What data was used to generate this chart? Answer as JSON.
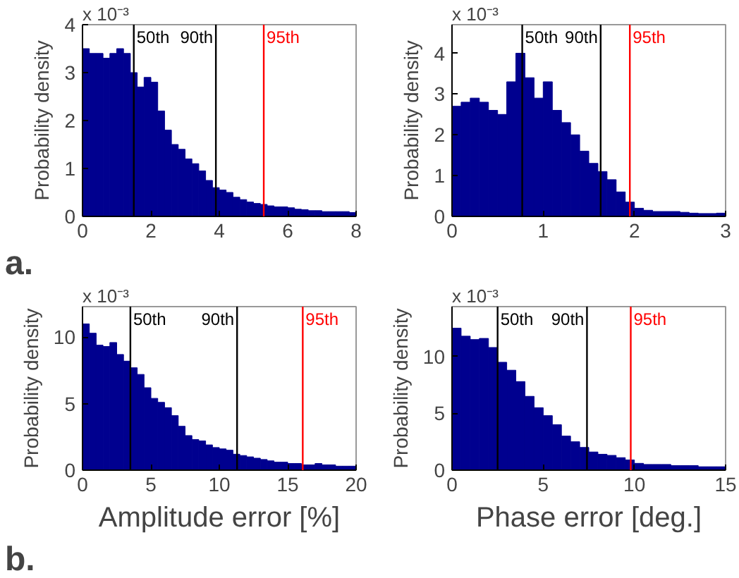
{
  "chart_data": [
    {
      "type": "histogram",
      "ylabel": "Probability density",
      "annotations": [
        "x 10⁻³",
        "a."
      ],
      "color": "#00008f",
      "bins": [
        0,
        0.2,
        0.4,
        0.6,
        0.8,
        1.0,
        1.2,
        1.4,
        1.6,
        1.8,
        2.0,
        2.2,
        2.4,
        2.6,
        2.8,
        3.0,
        3.2,
        3.4,
        3.6,
        3.8,
        4.0,
        4.2,
        4.4,
        4.6,
        4.8,
        5.0,
        5.2,
        5.4,
        5.6,
        5.8,
        6.0,
        6.2,
        6.4,
        6.6,
        6.8,
        7.0,
        7.2,
        7.4,
        7.6,
        7.8,
        8.0
      ],
      "values": [
        3.5,
        3.4,
        3.4,
        3.3,
        3.4,
        3.5,
        3.4,
        3.0,
        2.7,
        2.9,
        2.8,
        2.2,
        1.8,
        1.5,
        1.4,
        1.2,
        1.1,
        0.95,
        0.75,
        0.6,
        0.55,
        0.5,
        0.4,
        0.35,
        0.3,
        0.27,
        0.25,
        0.22,
        0.2,
        0.2,
        0.18,
        0.15,
        0.14,
        0.12,
        0.12,
        0.1,
        0.1,
        0.1,
        0.1,
        0.08
      ],
      "xlim": [
        0,
        8
      ],
      "xticks": [
        0,
        2,
        4,
        6,
        8
      ],
      "ylim": [
        0,
        4
      ],
      "yticks": [
        0,
        1,
        2,
        3,
        4
      ],
      "grid": false,
      "ref_lines": [
        {
          "axis": "x",
          "value": 1.5,
          "label": "50th",
          "color": "#000000"
        },
        {
          "axis": "x",
          "value": 3.9,
          "label": "90th",
          "color": "#000000"
        },
        {
          "axis": "x",
          "value": 5.3,
          "label": "95th",
          "color": "#ff0000"
        }
      ]
    },
    {
      "type": "histogram",
      "ylabel": "Probability density",
      "annotations": [
        "x 10⁻³"
      ],
      "color": "#00008f",
      "bins": [
        0,
        0.1,
        0.2,
        0.3,
        0.4,
        0.5,
        0.6,
        0.7,
        0.8,
        0.9,
        1.0,
        1.1,
        1.2,
        1.3,
        1.4,
        1.5,
        1.6,
        1.7,
        1.8,
        1.9,
        2.0,
        2.1,
        2.2,
        2.3,
        2.4,
        2.5,
        2.6,
        2.7,
        2.8,
        2.9,
        3.0
      ],
      "values": [
        2.7,
        2.8,
        2.9,
        2.8,
        2.6,
        2.5,
        3.3,
        4.0,
        3.4,
        2.9,
        3.3,
        2.6,
        2.3,
        2.0,
        1.6,
        1.3,
        1.1,
        0.9,
        0.6,
        0.35,
        0.2,
        0.15,
        0.12,
        0.12,
        0.12,
        0.1,
        0.08,
        0.07,
        0.07,
        0.08
      ],
      "xlim": [
        0,
        3
      ],
      "xticks": [
        0,
        1,
        2,
        3
      ],
      "ylim": [
        0,
        4.7
      ],
      "yticks": [
        0,
        1,
        2,
        3,
        4
      ],
      "grid": false,
      "ref_lines": [
        {
          "axis": "x",
          "value": 0.77,
          "label": "50th",
          "color": "#000000"
        },
        {
          "axis": "x",
          "value": 1.63,
          "label": "90th",
          "color": "#000000"
        },
        {
          "axis": "x",
          "value": 1.95,
          "label": "95th",
          "color": "#ff0000"
        }
      ]
    },
    {
      "type": "histogram",
      "xlabel": "Amplitude error [%]",
      "ylabel": "Probability density",
      "annotations": [
        "x 10⁻³",
        "b."
      ],
      "color": "#00008f",
      "bins": [
        0,
        0.5,
        1,
        1.5,
        2,
        2.5,
        3,
        3.5,
        4,
        4.5,
        5,
        5.5,
        6,
        6.5,
        7,
        7.5,
        8,
        8.5,
        9,
        9.5,
        10,
        10.5,
        11,
        11.5,
        12,
        12.5,
        13,
        13.5,
        14,
        14.5,
        15,
        15.5,
        16,
        16.5,
        17,
        17.5,
        18,
        18.5,
        19,
        19.5,
        20
      ],
      "values": [
        11.0,
        10.3,
        9.4,
        9.3,
        9.6,
        8.7,
        8.2,
        7.7,
        7.2,
        6.2,
        5.4,
        5.1,
        4.7,
        4.1,
        3.3,
        2.6,
        2.3,
        2.2,
        1.9,
        1.7,
        1.6,
        1.5,
        1.2,
        1.1,
        1.0,
        0.9,
        0.8,
        0.7,
        0.6,
        0.6,
        0.5,
        0.5,
        0.4,
        0.4,
        0.5,
        0.4,
        0.4,
        0.3,
        0.3,
        0.3
      ],
      "xlim": [
        0,
        20
      ],
      "xticks": [
        0,
        5,
        10,
        15,
        20
      ],
      "ylim": [
        0,
        12.3
      ],
      "yticks": [
        0,
        5,
        10
      ],
      "grid": false,
      "ref_lines": [
        {
          "axis": "x",
          "value": 3.5,
          "label": "50th",
          "color": "#000000"
        },
        {
          "axis": "x",
          "value": 11.3,
          "label": "90th",
          "color": "#000000"
        },
        {
          "axis": "x",
          "value": 16.1,
          "label": "95th",
          "color": "#ff0000"
        }
      ]
    },
    {
      "type": "histogram",
      "xlabel": "Phase error [deg.]",
      "ylabel": "Probability density",
      "annotations": [
        "x 10⁻³"
      ],
      "color": "#00008f",
      "bins": [
        0,
        0.5,
        1,
        1.5,
        2,
        2.5,
        3,
        3.5,
        4,
        4.5,
        5,
        5.5,
        6,
        6.5,
        7,
        7.5,
        8,
        8.5,
        9,
        9.5,
        10,
        10.5,
        11,
        11.5,
        12,
        12.5,
        13,
        13.5,
        14,
        14.5,
        15
      ],
      "values": [
        12.5,
        11.8,
        11.5,
        11.6,
        10.8,
        9.5,
        8.8,
        7.8,
        6.5,
        5.5,
        4.8,
        4.0,
        3.0,
        2.5,
        2.0,
        1.6,
        1.4,
        1.3,
        1.1,
        0.9,
        0.6,
        0.5,
        0.5,
        0.5,
        0.4,
        0.4,
        0.4,
        0.3,
        0.3,
        0.3
      ],
      "xlim": [
        0,
        15
      ],
      "xticks": [
        0,
        5,
        10,
        15
      ],
      "ylim": [
        0,
        14.4
      ],
      "yticks": [
        0,
        5,
        10
      ],
      "grid": false,
      "ref_lines": [
        {
          "axis": "x",
          "value": 2.5,
          "label": "50th",
          "color": "#000000"
        },
        {
          "axis": "x",
          "value": 7.4,
          "label": "90th",
          "color": "#000000"
        },
        {
          "axis": "x",
          "value": 9.8,
          "label": "95th",
          "color": "#ff0000"
        }
      ]
    }
  ]
}
